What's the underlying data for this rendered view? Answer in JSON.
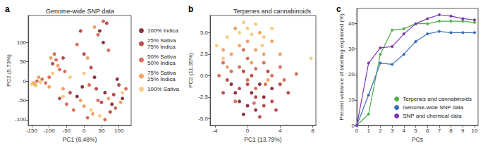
{
  "chart_data": [
    {
      "type": "scatter",
      "title": "Genome-wide SNP data",
      "annotations": [
        "a"
      ],
      "x_label": "PC1 (6.48%)",
      "y_label": "PC2 (5.73%)",
      "xlim": [
        -160,
        135
      ],
      "xticks": [
        -150,
        -100,
        -50,
        0,
        50,
        100
      ],
      "ylim": [
        -115,
        170
      ],
      "yticks": [
        -100,
        -50,
        0,
        50,
        100
      ],
      "grid": false,
      "legend": "right",
      "marker": "circle",
      "series": [
        {
          "name": "100% Indica",
          "color": "#7d1f2e",
          "x": [
            -5,
            80,
            60,
            110,
            45,
            55,
            -20,
            95,
            30
          ],
          "y": [
            -15,
            -60,
            -30,
            -45,
            130,
            100,
            -40,
            5,
            10
          ]
        },
        {
          "name": "25% Sativa 75% Indica",
          "color": "#b13a3a",
          "x": [
            -60,
            -90,
            -40,
            50,
            75,
            65,
            35,
            100,
            -10,
            0,
            -70,
            20,
            85
          ],
          "y": [
            60,
            45,
            -30,
            -55,
            -80,
            150,
            -20,
            -10,
            130,
            70,
            -45,
            35,
            -35
          ]
        },
        {
          "name": "50% Sativa 50% Indica",
          "color": "#d2604a",
          "x": [
            -135,
            -120,
            -100,
            -80,
            -70,
            -50,
            -30,
            10,
            40,
            60,
            90,
            40,
            55,
            70,
            -20,
            -55,
            15,
            120,
            -110,
            -85
          ],
          "y": [
            0,
            5,
            10,
            55,
            30,
            -60,
            -75,
            -95,
            -50,
            -100,
            -70,
            120,
            155,
            80,
            95,
            25,
            -10,
            -20,
            -5,
            70
          ]
        },
        {
          "name": "75% Sativa 25% Indica",
          "color": "#ec9858",
          "x": [
            -145,
            -140,
            -130,
            -95,
            -75,
            -60,
            -10,
            0,
            25,
            70,
            105,
            30,
            10,
            -100
          ],
          "y": [
            -5,
            -10,
            10,
            60,
            40,
            -20,
            -50,
            -65,
            -85,
            -45,
            -55,
            140,
            60,
            -15
          ]
        },
        {
          "name": "100% Sativa",
          "color": "#f7c771",
          "x": [
            -150,
            -138,
            -125,
            -90,
            -60,
            20,
            45,
            110,
            0,
            -40
          ],
          "y": [
            -8,
            -12,
            -3,
            20,
            -40,
            -75,
            -90,
            -30,
            20,
            10
          ]
        }
      ]
    },
    {
      "type": "scatter",
      "title": "Terpenes and cannabinoids",
      "annotations": [
        "b"
      ],
      "x_label": "PC1 (13.79%)",
      "y_label": "PC2 (11.35%)",
      "xlim": [
        -4.6,
        8.4
      ],
      "xticks": [
        -4,
        0,
        4,
        8
      ],
      "ylim": [
        -5.8,
        7
      ],
      "yticks": [
        {
          "value": -5,
          "label": "-5.0"
        },
        {
          "value": -2.5,
          "label": "-2.5"
        },
        {
          "value": 0,
          "label": "0.0"
        },
        {
          "value": 2.5,
          "label": "2.5"
        },
        {
          "value": 5,
          "label": "5.0"
        }
      ],
      "grid": false,
      "marker": "circle",
      "series": [
        {
          "name": "100% Indica",
          "color": "#7d1f2e",
          "x": [
            -1,
            0.5,
            1,
            -2,
            2,
            0,
            -1.5,
            1.5,
            3,
            -0.5
          ],
          "y": [
            -3,
            -2,
            -4,
            -1,
            -2.5,
            -3.5,
            -2,
            -1,
            -1.5,
            -4.5
          ]
        },
        {
          "name": "25% Sativa 75% Indica",
          "color": "#b13a3a",
          "x": [
            -2.5,
            -1,
            0,
            1,
            2,
            3,
            4,
            -3,
            0.5,
            1.5,
            -0.5,
            2.5,
            5,
            3.5
          ],
          "y": [
            -0.5,
            -1.5,
            -1,
            -2.5,
            -3.5,
            -3,
            -1,
            -2,
            0,
            -4.8,
            0.5,
            0.5,
            -2,
            -4
          ]
        },
        {
          "name": "50% Sativa 50% Indica",
          "color": "#d2604a",
          "x": [
            -3.5,
            -2,
            -1,
            0,
            1,
            2,
            3,
            4,
            -1.5,
            0,
            1,
            2.2,
            -3,
            -0.5,
            4.5,
            6,
            0.8
          ],
          "y": [
            0,
            0.5,
            1,
            2,
            0.8,
            1.5,
            0,
            1,
            -3,
            -0.5,
            -1.5,
            -1,
            1.5,
            3,
            -0.5,
            0.2,
            -3.2
          ]
        },
        {
          "name": "75% Sativa 25% Indica",
          "color": "#ec9858",
          "x": [
            -3,
            -2,
            -1,
            0,
            1,
            2,
            3,
            -2.5,
            0.5,
            1.5,
            4,
            -1.5,
            2.5
          ],
          "y": [
            3,
            2.5,
            3.5,
            4,
            3,
            2.5,
            4,
            1,
            1.5,
            5,
            2.5,
            5.5,
            -0.5
          ]
        },
        {
          "name": "100% Sativa",
          "color": "#f7c771",
          "x": [
            -3.8,
            -2.5,
            -1,
            0,
            1,
            2,
            3,
            -3,
            0.5,
            -0.5,
            1.8,
            7.8
          ],
          "y": [
            3.5,
            4.5,
            5,
            5.5,
            6,
            4.5,
            5.5,
            2,
            4.8,
            6.2,
            3.5,
            2
          ]
        }
      ]
    },
    {
      "type": "line",
      "annotations": [
        "c"
      ],
      "x_label": "PCs",
      "y_label": "Percent variance of labelling explained (%)",
      "x": [
        0,
        1,
        2,
        3,
        4,
        5,
        6,
        7,
        8,
        9,
        10
      ],
      "xlim": [
        0,
        10.3
      ],
      "xticks": [
        0,
        1,
        2,
        3,
        4,
        5,
        6,
        7,
        8,
        9,
        10
      ],
      "ylim": [
        0,
        46
      ],
      "yticks": [
        0,
        10,
        20,
        30,
        40
      ],
      "grid": false,
      "legend": "lower right",
      "marker": "circle",
      "series": [
        {
          "name": "Terpenes and cannabinoids",
          "color": "#4fb04a",
          "values": [
            0,
            4.5,
            28,
            37.5,
            38,
            40,
            40,
            41,
            41,
            41,
            40.5
          ]
        },
        {
          "name": "Genome-wide SNP data",
          "color": "#3a6cb5",
          "values": [
            0,
            12,
            24.5,
            24,
            28,
            33,
            36,
            37,
            36.5,
            36.5,
            36.5
          ]
        },
        {
          "name": "SNP and chemical data",
          "color": "#7b35b5",
          "values": [
            0,
            24.5,
            30.5,
            31,
            36,
            40,
            42,
            43.5,
            43,
            42,
            41.5
          ]
        }
      ]
    }
  ]
}
